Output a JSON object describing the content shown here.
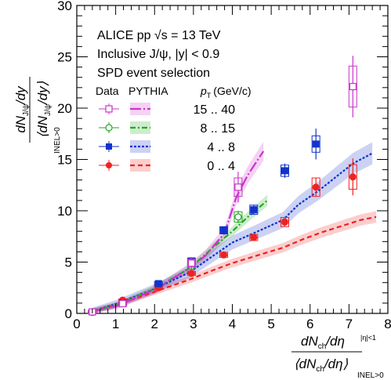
{
  "chart_data": {
    "type": "scatter",
    "ylabel_main": "dN",
    "ylabel_sub": "J/ψ",
    "ylabel_den": "⟨dN",
    "ylabel_den_sub": "J/ψ",
    "ylabel_den_tail": "/dy⟩",
    "ylabel_num_tail": "/dy",
    "ylabel_side": "INEL>0",
    "xlabel_num": "dN",
    "xlabel_num_sub": "ch",
    "xlabel_num_tail": "/dη",
    "xlabel_num_side": "|η|<1",
    "xlabel_den": "⟨dN",
    "xlabel_den_sub": "ch",
    "xlabel_den_tail": "/dη⟩",
    "xlabel_den_side": "INEL>0",
    "xlim": [
      0,
      8
    ],
    "ylim": [
      0,
      30
    ],
    "xticks": [
      "0",
      "1",
      "2",
      "3",
      "4",
      "5",
      "6",
      "7",
      "8"
    ],
    "yticks": [
      "0",
      "5",
      "10",
      "15",
      "20",
      "25",
      "30"
    ],
    "annotations": {
      "line1": "ALICE pp √s = 13 TeV",
      "line2": "Inclusive J/ψ, |y| < 0.9",
      "line3": "SPD event selection"
    },
    "legend": {
      "col_data": "Data",
      "col_pythia": "PYTHIA",
      "col_pt_main": "p",
      "col_pt_sub": "T",
      "col_pt_unit": "(GeV/c)",
      "placement": "top-left"
    },
    "series": [
      {
        "name": "15 .. 40",
        "color": "#cc33cc",
        "marker": "open-square",
        "data": [
          {
            "x": 0.4,
            "y": 0.15,
            "err": 0.15,
            "sys": 0.2
          },
          {
            "x": 1.18,
            "y": 0.95,
            "err": 0.35,
            "sys": 0.25
          },
          {
            "x": 2.95,
            "y": 4.9,
            "err": 0.6,
            "sys": 0.4
          },
          {
            "x": 4.15,
            "y": 12.3,
            "err": 1.5,
            "sys": 0.9
          },
          {
            "x": 7.1,
            "y": 22.1,
            "err": 3.0,
            "sys": 2.0
          }
        ],
        "pythia": [
          [
            0.4,
            0.2
          ],
          [
            1.0,
            0.7
          ],
          [
            2.0,
            2.3
          ],
          [
            2.9,
            4.4
          ],
          [
            3.3,
            5.6
          ],
          [
            3.8,
            7.8
          ],
          [
            4.1,
            11.3
          ],
          [
            4.4,
            13.5
          ],
          [
            4.8,
            15.8
          ]
        ],
        "pythia_band": 0.6
      },
      {
        "name": "8 .. 15",
        "color": "#22aa22",
        "marker": "open-circle",
        "data": [
          {
            "x": 0.4,
            "y": 0.15,
            "err": 0.1,
            "sys": 0.1
          },
          {
            "x": 1.18,
            "y": 1.0,
            "err": 0.15,
            "sys": 0.15
          },
          {
            "x": 2.95,
            "y": 4.6,
            "err": 0.25,
            "sys": 0.25
          },
          {
            "x": 4.15,
            "y": 9.4,
            "err": 0.6,
            "sys": 0.5
          }
        ],
        "pythia": [
          [
            0.4,
            0.2
          ],
          [
            1.0,
            0.8
          ],
          [
            2.0,
            2.4
          ],
          [
            2.9,
            4.4
          ],
          [
            3.5,
            6.4
          ],
          [
            4.0,
            8.0
          ],
          [
            4.4,
            9.4
          ],
          [
            4.9,
            11.0
          ]
        ],
        "pythia_band": 0.45
      },
      {
        "name": "4 .. 8",
        "color": "#1133cc",
        "marker": "filled-square",
        "data": [
          {
            "x": 0.4,
            "y": 0.15,
            "err": 0.1,
            "sys": 0.1
          },
          {
            "x": 1.18,
            "y": 1.0,
            "err": 0.1,
            "sys": 0.1
          },
          {
            "x": 2.1,
            "y": 2.9,
            "err": 0.15,
            "sys": 0.2
          },
          {
            "x": 2.95,
            "y": 5.1,
            "err": 0.25,
            "sys": 0.3
          },
          {
            "x": 3.78,
            "y": 8.1,
            "err": 0.35,
            "sys": 0.35
          },
          {
            "x": 4.55,
            "y": 10.1,
            "err": 0.45,
            "sys": 0.45
          },
          {
            "x": 5.35,
            "y": 13.9,
            "err": 0.7,
            "sys": 0.55
          },
          {
            "x": 6.15,
            "y": 16.5,
            "err": 1.5,
            "sys": 0.8
          }
        ],
        "pythia": [
          [
            0.4,
            0.2
          ],
          [
            1.0,
            0.9
          ],
          [
            2.0,
            2.4
          ],
          [
            2.9,
            4.0
          ],
          [
            3.5,
            5.6
          ],
          [
            4.0,
            6.9
          ],
          [
            4.6,
            7.9
          ],
          [
            5.3,
            9.1
          ],
          [
            5.7,
            10.6
          ],
          [
            6.2,
            11.9
          ],
          [
            6.6,
            13.1
          ],
          [
            7.1,
            14.6
          ],
          [
            7.6,
            15.6
          ]
        ],
        "pythia_band": 0.7
      },
      {
        "name": "0 .. 4",
        "color": "#ee2222",
        "marker": "filled-circle",
        "data": [
          {
            "x": 0.4,
            "y": 0.1,
            "err": 0.05,
            "sys": 0.1
          },
          {
            "x": 1.18,
            "y": 1.3,
            "err": 0.1,
            "sys": 0.1
          },
          {
            "x": 2.1,
            "y": 2.5,
            "err": 0.1,
            "sys": 0.15
          },
          {
            "x": 2.95,
            "y": 3.9,
            "err": 0.15,
            "sys": 0.2
          },
          {
            "x": 3.78,
            "y": 5.7,
            "err": 0.2,
            "sys": 0.25
          },
          {
            "x": 4.55,
            "y": 7.4,
            "err": 0.3,
            "sys": 0.3
          },
          {
            "x": 5.35,
            "y": 8.9,
            "err": 0.4,
            "sys": 0.45
          },
          {
            "x": 6.15,
            "y": 12.3,
            "err": 0.9,
            "sys": 0.9
          },
          {
            "x": 7.1,
            "y": 13.3,
            "err": 1.8,
            "sys": 1.2
          }
        ],
        "pythia": [
          [
            0.4,
            0.2
          ],
          [
            1.0,
            0.8
          ],
          [
            2.0,
            2.1
          ],
          [
            2.9,
            3.3
          ],
          [
            3.5,
            4.2
          ],
          [
            4.0,
            4.9
          ],
          [
            4.6,
            5.6
          ],
          [
            5.3,
            6.4
          ],
          [
            5.8,
            7.2
          ],
          [
            6.3,
            7.9
          ],
          [
            6.8,
            8.5
          ],
          [
            7.3,
            9.1
          ],
          [
            7.7,
            9.4
          ]
        ],
        "pythia_band": 0.5
      }
    ]
  }
}
